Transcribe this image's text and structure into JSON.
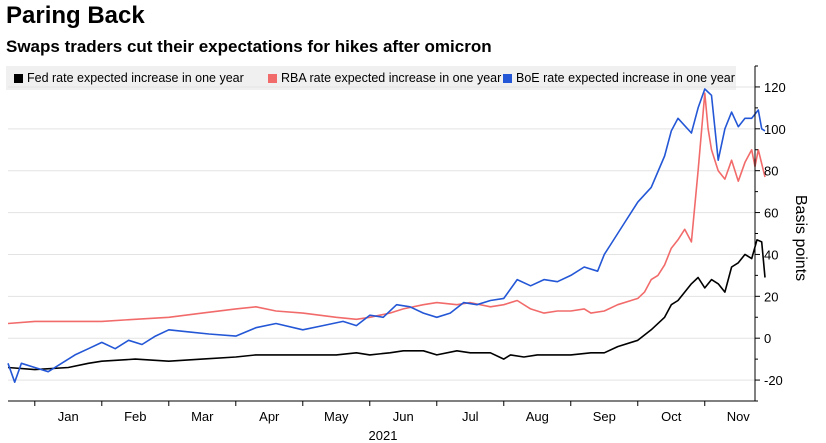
{
  "header": {
    "title": "Paring Back",
    "subtitle": "Swaps traders cut their expectations for hikes after omicron"
  },
  "legend": [
    {
      "label": "Fed rate expected increase in one year",
      "color": "#000000"
    },
    {
      "label": "RBA rate expected increase in one year",
      "color": "#f26b6b"
    },
    {
      "label": "BoE rate expected increase in one year",
      "color": "#2457d6"
    }
  ],
  "chart_data": {
    "type": "line",
    "title": "Paring Back",
    "subtitle": "Swaps traders cut their expectations for hikes after omicron",
    "xlabel": "2021",
    "ylabel": "Basis points",
    "x_unit": "month index (0 = start of Jan 2021)",
    "xlim": [
      -0.4,
      10.75
    ],
    "ylim": [
      -30,
      130
    ],
    "y_ticks": [
      -20,
      0,
      20,
      40,
      60,
      80,
      100,
      120
    ],
    "month_labels": [
      "Jan",
      "Feb",
      "Mar",
      "Apr",
      "May",
      "Jun",
      "Jul",
      "Aug",
      "Sep",
      "Oct",
      "Nov"
    ],
    "year_label": "2021",
    "y_axis_side": "right",
    "grid": "horizontal",
    "series": [
      {
        "name": "Fed rate expected increase in one year",
        "color": "#000000",
        "points": [
          [
            -0.4,
            -14
          ],
          [
            0,
            -15
          ],
          [
            0.5,
            -14
          ],
          [
            0.8,
            -12
          ],
          [
            1.0,
            -11
          ],
          [
            1.5,
            -10
          ],
          [
            2.0,
            -11
          ],
          [
            2.5,
            -10
          ],
          [
            3.0,
            -9
          ],
          [
            3.3,
            -8
          ],
          [
            3.6,
            -8
          ],
          [
            4.0,
            -8
          ],
          [
            4.5,
            -8
          ],
          [
            4.8,
            -7
          ],
          [
            5.0,
            -8
          ],
          [
            5.3,
            -7
          ],
          [
            5.5,
            -6
          ],
          [
            5.8,
            -6
          ],
          [
            6.0,
            -8
          ],
          [
            6.3,
            -6
          ],
          [
            6.5,
            -7
          ],
          [
            6.8,
            -7
          ],
          [
            7.0,
            -10
          ],
          [
            7.1,
            -8
          ],
          [
            7.3,
            -9
          ],
          [
            7.5,
            -8
          ],
          [
            7.8,
            -8
          ],
          [
            8.0,
            -8
          ],
          [
            8.3,
            -7
          ],
          [
            8.5,
            -7
          ],
          [
            8.7,
            -4
          ],
          [
            9.0,
            -1
          ],
          [
            9.2,
            4
          ],
          [
            9.4,
            10
          ],
          [
            9.5,
            16
          ],
          [
            9.6,
            18
          ],
          [
            9.7,
            22
          ],
          [
            9.8,
            26
          ],
          [
            9.9,
            29
          ],
          [
            10.0,
            24
          ],
          [
            10.1,
            28
          ],
          [
            10.2,
            26
          ],
          [
            10.3,
            22
          ],
          [
            10.4,
            34
          ],
          [
            10.5,
            36
          ],
          [
            10.6,
            40
          ],
          [
            10.7,
            38
          ],
          [
            10.78,
            47
          ],
          [
            10.85,
            46
          ],
          [
            10.9,
            29
          ]
        ]
      },
      {
        "name": "RBA rate expected increase in one year",
        "color": "#f26b6b",
        "points": [
          [
            -0.4,
            7
          ],
          [
            0,
            8
          ],
          [
            0.5,
            8
          ],
          [
            1.0,
            8
          ],
          [
            1.5,
            9
          ],
          [
            2.0,
            10
          ],
          [
            2.5,
            12
          ],
          [
            3.0,
            14
          ],
          [
            3.3,
            15
          ],
          [
            3.6,
            13
          ],
          [
            4.0,
            12
          ],
          [
            4.5,
            10
          ],
          [
            4.8,
            9
          ],
          [
            5.0,
            10
          ],
          [
            5.3,
            12
          ],
          [
            5.5,
            14
          ],
          [
            5.8,
            16
          ],
          [
            6.0,
            17
          ],
          [
            6.3,
            16
          ],
          [
            6.5,
            17
          ],
          [
            6.8,
            15
          ],
          [
            7.0,
            16
          ],
          [
            7.2,
            18
          ],
          [
            7.4,
            14
          ],
          [
            7.6,
            12
          ],
          [
            7.8,
            13
          ],
          [
            8.0,
            13
          ],
          [
            8.2,
            14
          ],
          [
            8.3,
            12
          ],
          [
            8.5,
            13
          ],
          [
            8.7,
            16
          ],
          [
            8.9,
            18
          ],
          [
            9.0,
            19
          ],
          [
            9.1,
            22
          ],
          [
            9.2,
            28
          ],
          [
            9.3,
            30
          ],
          [
            9.4,
            35
          ],
          [
            9.5,
            43
          ],
          [
            9.6,
            47
          ],
          [
            9.7,
            52
          ],
          [
            9.8,
            46
          ],
          [
            9.9,
            80
          ],
          [
            10.0,
            117
          ],
          [
            10.05,
            100
          ],
          [
            10.1,
            90
          ],
          [
            10.2,
            80
          ],
          [
            10.3,
            76
          ],
          [
            10.4,
            85
          ],
          [
            10.5,
            75
          ],
          [
            10.6,
            84
          ],
          [
            10.7,
            90
          ],
          [
            10.75,
            82
          ],
          [
            10.8,
            90
          ],
          [
            10.9,
            77
          ]
        ]
      },
      {
        "name": "BoE rate expected increase in one year",
        "color": "#2457d6",
        "points": [
          [
            -0.4,
            -12
          ],
          [
            -0.3,
            -21
          ],
          [
            -0.2,
            -12
          ],
          [
            0,
            -14
          ],
          [
            0.2,
            -16
          ],
          [
            0.4,
            -12
          ],
          [
            0.6,
            -8
          ],
          [
            0.8,
            -5
          ],
          [
            1.0,
            -2
          ],
          [
            1.2,
            -5
          ],
          [
            1.4,
            -1
          ],
          [
            1.6,
            -3
          ],
          [
            1.8,
            1
          ],
          [
            2.0,
            4
          ],
          [
            2.3,
            3
          ],
          [
            2.6,
            2
          ],
          [
            3.0,
            1
          ],
          [
            3.3,
            5
          ],
          [
            3.6,
            7
          ],
          [
            4.0,
            4
          ],
          [
            4.3,
            6
          ],
          [
            4.6,
            8
          ],
          [
            4.8,
            6
          ],
          [
            5.0,
            11
          ],
          [
            5.2,
            10
          ],
          [
            5.4,
            16
          ],
          [
            5.6,
            15
          ],
          [
            5.8,
            12
          ],
          [
            6.0,
            10
          ],
          [
            6.2,
            12
          ],
          [
            6.4,
            17
          ],
          [
            6.6,
            16
          ],
          [
            6.8,
            18
          ],
          [
            7.0,
            19
          ],
          [
            7.2,
            28
          ],
          [
            7.4,
            25
          ],
          [
            7.6,
            28
          ],
          [
            7.8,
            27
          ],
          [
            8.0,
            30
          ],
          [
            8.2,
            34
          ],
          [
            8.4,
            32
          ],
          [
            8.5,
            40
          ],
          [
            8.6,
            45
          ],
          [
            8.8,
            55
          ],
          [
            9.0,
            65
          ],
          [
            9.2,
            72
          ],
          [
            9.4,
            87
          ],
          [
            9.5,
            99
          ],
          [
            9.6,
            105
          ],
          [
            9.8,
            98
          ],
          [
            9.9,
            110
          ],
          [
            10.0,
            119
          ],
          [
            10.1,
            116
          ],
          [
            10.2,
            85
          ],
          [
            10.3,
            100
          ],
          [
            10.4,
            108
          ],
          [
            10.5,
            101
          ],
          [
            10.6,
            105
          ],
          [
            10.7,
            105
          ],
          [
            10.8,
            109
          ],
          [
            10.85,
            100
          ],
          [
            10.9,
            99
          ]
        ]
      }
    ]
  }
}
